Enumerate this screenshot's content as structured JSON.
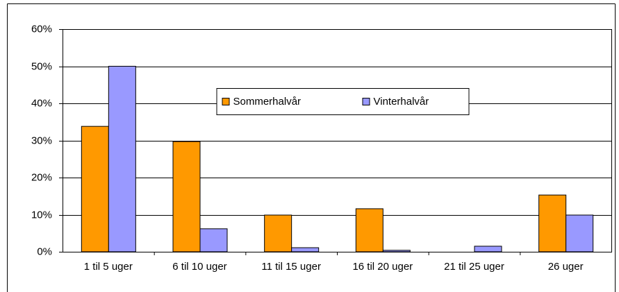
{
  "chart_data": {
    "type": "bar",
    "categories": [
      "1 til 5 uger",
      "6 til 10 uger",
      "11 til 15 uger",
      "16 til 20 uger",
      "21 til 25 uger",
      "26 uger"
    ],
    "series": [
      {
        "name": "Sommerhalvår",
        "color": "#ff9900",
        "values": [
          33.8,
          29.7,
          9.9,
          11.6,
          0,
          15.3
        ]
      },
      {
        "name": "Vinterhalvår",
        "color": "#9999ff",
        "values": [
          50,
          6.2,
          1.1,
          0.4,
          1.5,
          9.9
        ]
      }
    ],
    "ylim": [
      0,
      60
    ],
    "yticks": [
      {
        "value": 0,
        "label": "0%"
      },
      {
        "value": 10,
        "label": "10%"
      },
      {
        "value": 20,
        "label": "20%"
      },
      {
        "value": 30,
        "label": "30%"
      },
      {
        "value": 40,
        "label": "40%"
      },
      {
        "value": 50,
        "label": "50%"
      },
      {
        "value": 60,
        "label": "60%"
      }
    ],
    "grid": true,
    "legend": "center"
  }
}
